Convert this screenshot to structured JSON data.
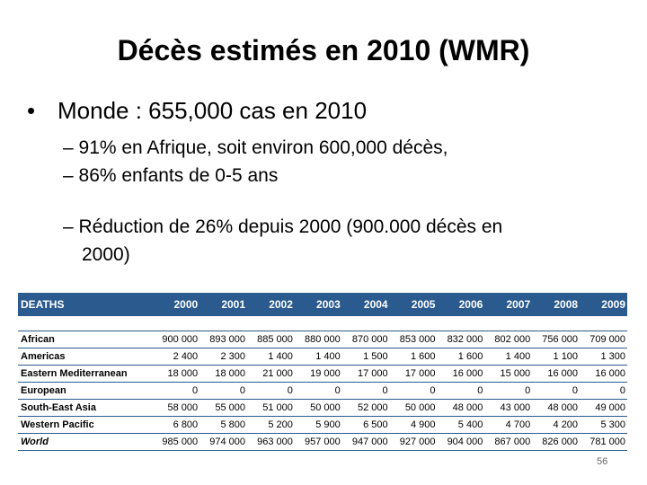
{
  "slide": {
    "title": "Décès estimés en 2010 (WMR)",
    "bullet": "Monde : 655,000 cas en 2010",
    "sub_items": [
      "– 91% en Afrique, soit environ 600,000 décès,",
      "– 86% enfants de 0-5 ans",
      "– Réduction de 26% depuis 2000 (900.000 décès en",
      "2000)"
    ],
    "page_number": "56"
  },
  "table": {
    "headers": [
      "DEATHS",
      "2000",
      "2001",
      "2002",
      "2003",
      "2004",
      "2005",
      "2006",
      "2007",
      "2008",
      "2009"
    ],
    "rows": [
      [
        "African",
        "900 000",
        "893 000",
        "885 000",
        "880 000",
        "870 000",
        "853 000",
        "832 000",
        "802 000",
        "756 000",
        "709 000"
      ],
      [
        "Americas",
        "2 400",
        "2 300",
        "1 400",
        "1 400",
        "1 500",
        "1 600",
        "1 600",
        "1 400",
        "1 100",
        "1 300"
      ],
      [
        "Eastern Mediterranean",
        "18 000",
        "18 000",
        "21 000",
        "19 000",
        "17 000",
        "17 000",
        "16 000",
        "15 000",
        "16 000",
        "16 000"
      ],
      [
        "European",
        "0",
        "0",
        "0",
        "0",
        "0",
        "0",
        "0",
        "0",
        "0",
        "0"
      ],
      [
        "South-East Asia",
        "58 000",
        "55 000",
        "51 000",
        "50 000",
        "52 000",
        "50 000",
        "48 000",
        "43 000",
        "48 000",
        "49 000"
      ],
      [
        "Western Pacific",
        "6 800",
        "5 800",
        "5 200",
        "5 900",
        "6 500",
        "4 900",
        "5 400",
        "4 700",
        "4 200",
        "5 300"
      ],
      [
        "World",
        "985 000",
        "974 000",
        "963 000",
        "957 000",
        "947 000",
        "927 000",
        "904 000",
        "867 000",
        "826 000",
        "781 000"
      ]
    ]
  }
}
